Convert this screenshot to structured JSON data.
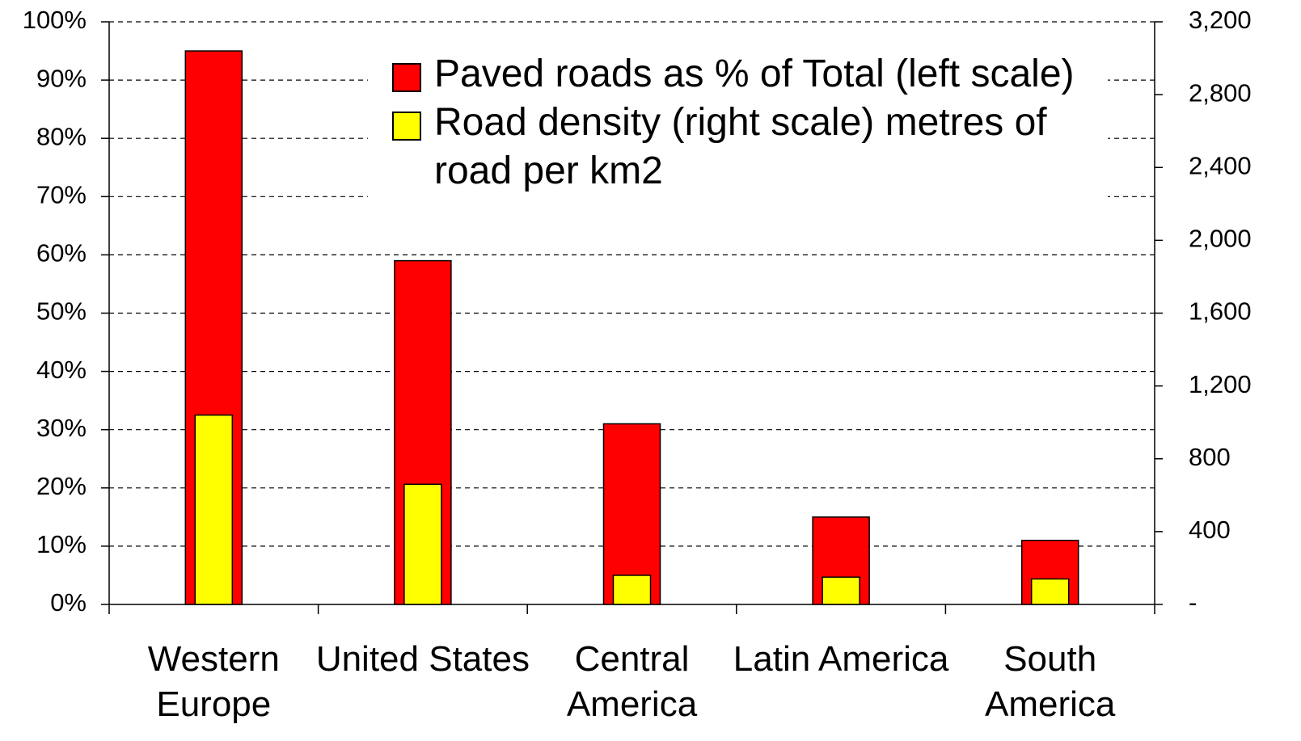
{
  "chart_data": {
    "type": "bar",
    "categories": [
      "Western Europe",
      "United States",
      "Central America",
      "Latin America",
      "South America"
    ],
    "series": [
      {
        "name": "Paved roads as % of Total (left scale)",
        "color": "#ff0000",
        "values": [
          95,
          59,
          31,
          15,
          11
        ]
      },
      {
        "name": "Road density (right scale) metres of road per km2",
        "color": "#ffff00",
        "axis": "y2",
        "values": [
          1040,
          660,
          160,
          150,
          140
        ]
      }
    ],
    "ylim": [
      0,
      100
    ],
    "yticks": [
      {
        "value": 0,
        "label": "0%"
      },
      {
        "value": 10,
        "label": "10%"
      },
      {
        "value": 20,
        "label": "20%"
      },
      {
        "value": 30,
        "label": "30%"
      },
      {
        "value": 40,
        "label": "40%"
      },
      {
        "value": 50,
        "label": "50%"
      },
      {
        "value": 60,
        "label": "60%"
      },
      {
        "value": 70,
        "label": "70%"
      },
      {
        "value": 80,
        "label": "80%"
      },
      {
        "value": 90,
        "label": "90%"
      },
      {
        "value": 100,
        "label": "100%"
      }
    ],
    "y2lim": [
      0,
      3200
    ],
    "y2ticks": [
      {
        "value": 0,
        "label": "-"
      },
      400,
      800,
      {
        "value": 1200,
        "label": "1,200"
      },
      {
        "value": 1600,
        "label": "1,600"
      },
      {
        "value": 2000,
        "label": "2,000"
      },
      {
        "value": 2400,
        "label": "2,400"
      },
      {
        "value": 2800,
        "label": "2,800"
      },
      {
        "value": 3200,
        "label": "3,200"
      }
    ],
    "grid": true,
    "legend": "top-right"
  }
}
